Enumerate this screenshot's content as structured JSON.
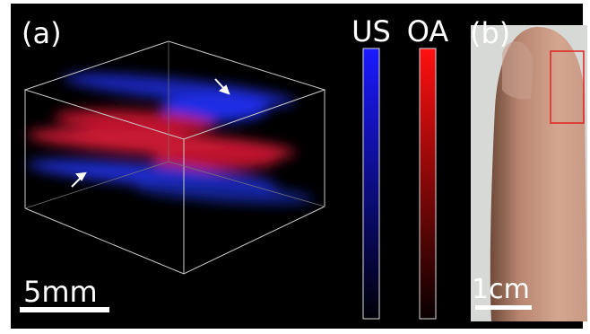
{
  "panels": [
    {
      "label": "(a)",
      "scale_bar": "5mm"
    },
    {
      "label": "(b)",
      "scale_bar": "1cm"
    }
  ],
  "colorbars": [
    {
      "label": "US"
    },
    {
      "label": "OA"
    }
  ]
}
